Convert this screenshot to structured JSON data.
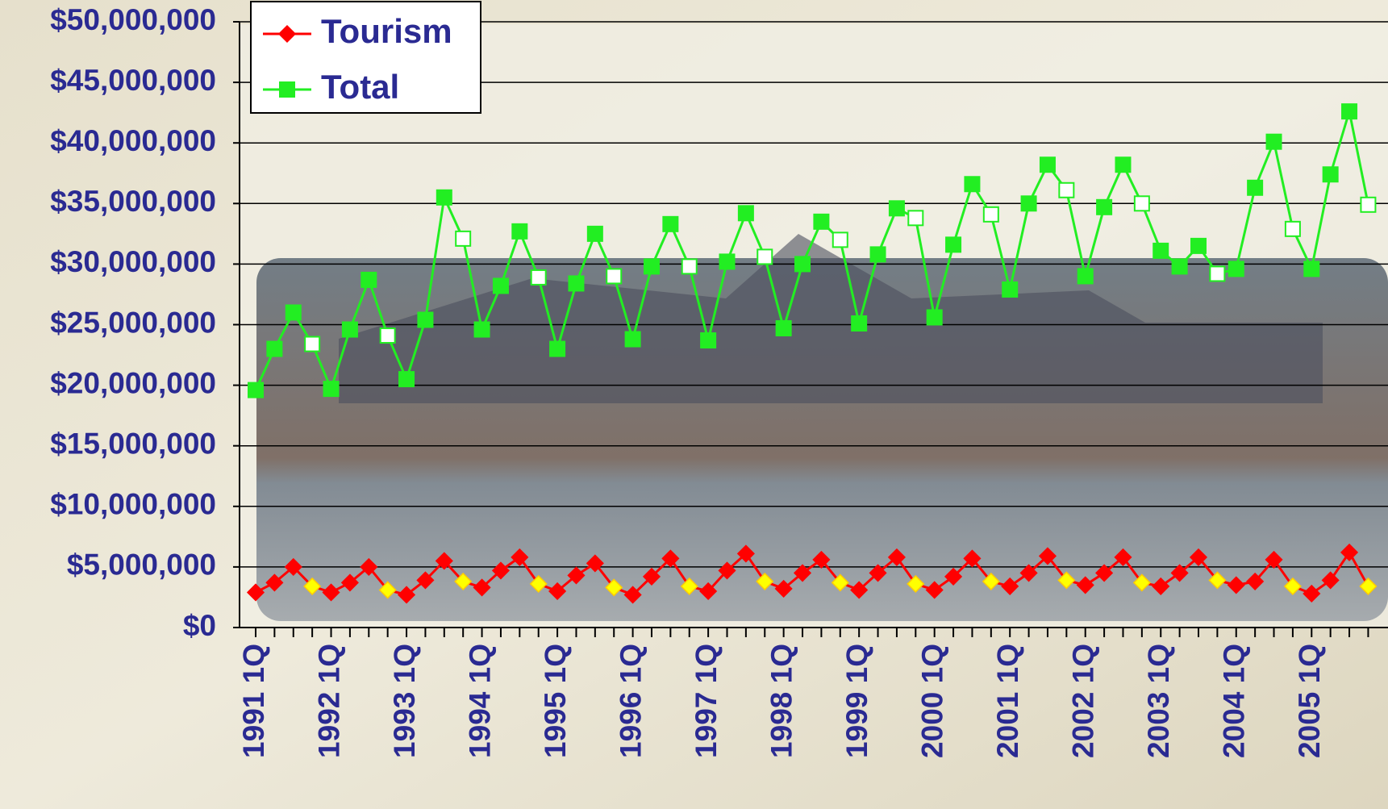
{
  "chart_data": {
    "type": "line",
    "categories": [
      "1991 1Q",
      null,
      null,
      null,
      "1992 1Q",
      null,
      null,
      null,
      "1993 1Q",
      null,
      null,
      null,
      "1994 1Q",
      null,
      null,
      null,
      "1995 1Q",
      null,
      null,
      null,
      "1996 1Q",
      null,
      null,
      null,
      "1997 1Q",
      null,
      null,
      null,
      "1998 1Q",
      null,
      null,
      null,
      "1999 1Q",
      null,
      null,
      null,
      "2000 1Q",
      null,
      null,
      null,
      "2001 1Q",
      null,
      null,
      null,
      "2002 1Q",
      null,
      null,
      null,
      "2003 1Q",
      null,
      null,
      null,
      "2004 1Q",
      null,
      null,
      null,
      "2005 1Q",
      null,
      null,
      null
    ],
    "series": [
      {
        "name": "Tourism",
        "color": "#ff0000",
        "marker": "diamond",
        "values": [
          2900000,
          3700000,
          5000000,
          3400000,
          2900000,
          3700000,
          5000000,
          3100000,
          2700000,
          3900000,
          5500000,
          3800000,
          3300000,
          4700000,
          5800000,
          3600000,
          3000000,
          4300000,
          5300000,
          3300000,
          2700000,
          4200000,
          5700000,
          3400000,
          3000000,
          4700000,
          6100000,
          3800000,
          3200000,
          4500000,
          5600000,
          3700000,
          3100000,
          4500000,
          5800000,
          3600000,
          3100000,
          4200000,
          5700000,
          3800000,
          3400000,
          4500000,
          5900000,
          3900000,
          3500000,
          4500000,
          5800000,
          3700000,
          3400000,
          4500000,
          5800000,
          3900000,
          3500000,
          3800000,
          5600000,
          3400000,
          2800000,
          3900000,
          6200000,
          3400000
        ]
      },
      {
        "name": "Total",
        "color": "#22ee22",
        "marker": "square",
        "values": [
          19600000,
          23000000,
          26000000,
          23400000,
          19700000,
          24600000,
          28700000,
          24100000,
          20500000,
          25400000,
          35500000,
          32100000,
          24600000,
          28200000,
          32700000,
          28900000,
          23000000,
          28400000,
          32500000,
          29000000,
          23800000,
          29800000,
          33300000,
          29800000,
          23700000,
          30200000,
          34200000,
          30600000,
          24700000,
          30000000,
          33500000,
          32000000,
          25100000,
          30800000,
          34600000,
          33800000,
          25600000,
          31600000,
          36600000,
          34100000,
          27900000,
          35000000,
          38200000,
          36100000,
          29000000,
          34700000,
          38200000,
          35000000,
          31100000,
          29800000,
          31500000,
          29200000,
          29600000,
          36300000,
          40100000,
          32900000,
          29600000,
          37400000,
          42600000,
          34900000
        ]
      }
    ],
    "ylim": [
      0,
      50000000
    ],
    "yticks": [
      {
        "value": 0,
        "label": "$0"
      },
      {
        "value": 5000000,
        "label": "$5,000,000"
      },
      {
        "value": 10000000,
        "label": "$10,000,000"
      },
      {
        "value": 15000000,
        "label": "$15,000,000"
      },
      {
        "value": 20000000,
        "label": "$20,000,000"
      },
      {
        "value": 25000000,
        "label": "$25,000,000"
      },
      {
        "value": 30000000,
        "label": "$30,000,000"
      },
      {
        "value": 35000000,
        "label": "$35,000,000"
      },
      {
        "value": 40000000,
        "label": "$40,000,000"
      },
      {
        "value": 45000000,
        "label": "$45,000,000"
      },
      {
        "value": 50000000,
        "label": "$50,000,000"
      }
    ],
    "grid": true,
    "legend": "top-left"
  }
}
